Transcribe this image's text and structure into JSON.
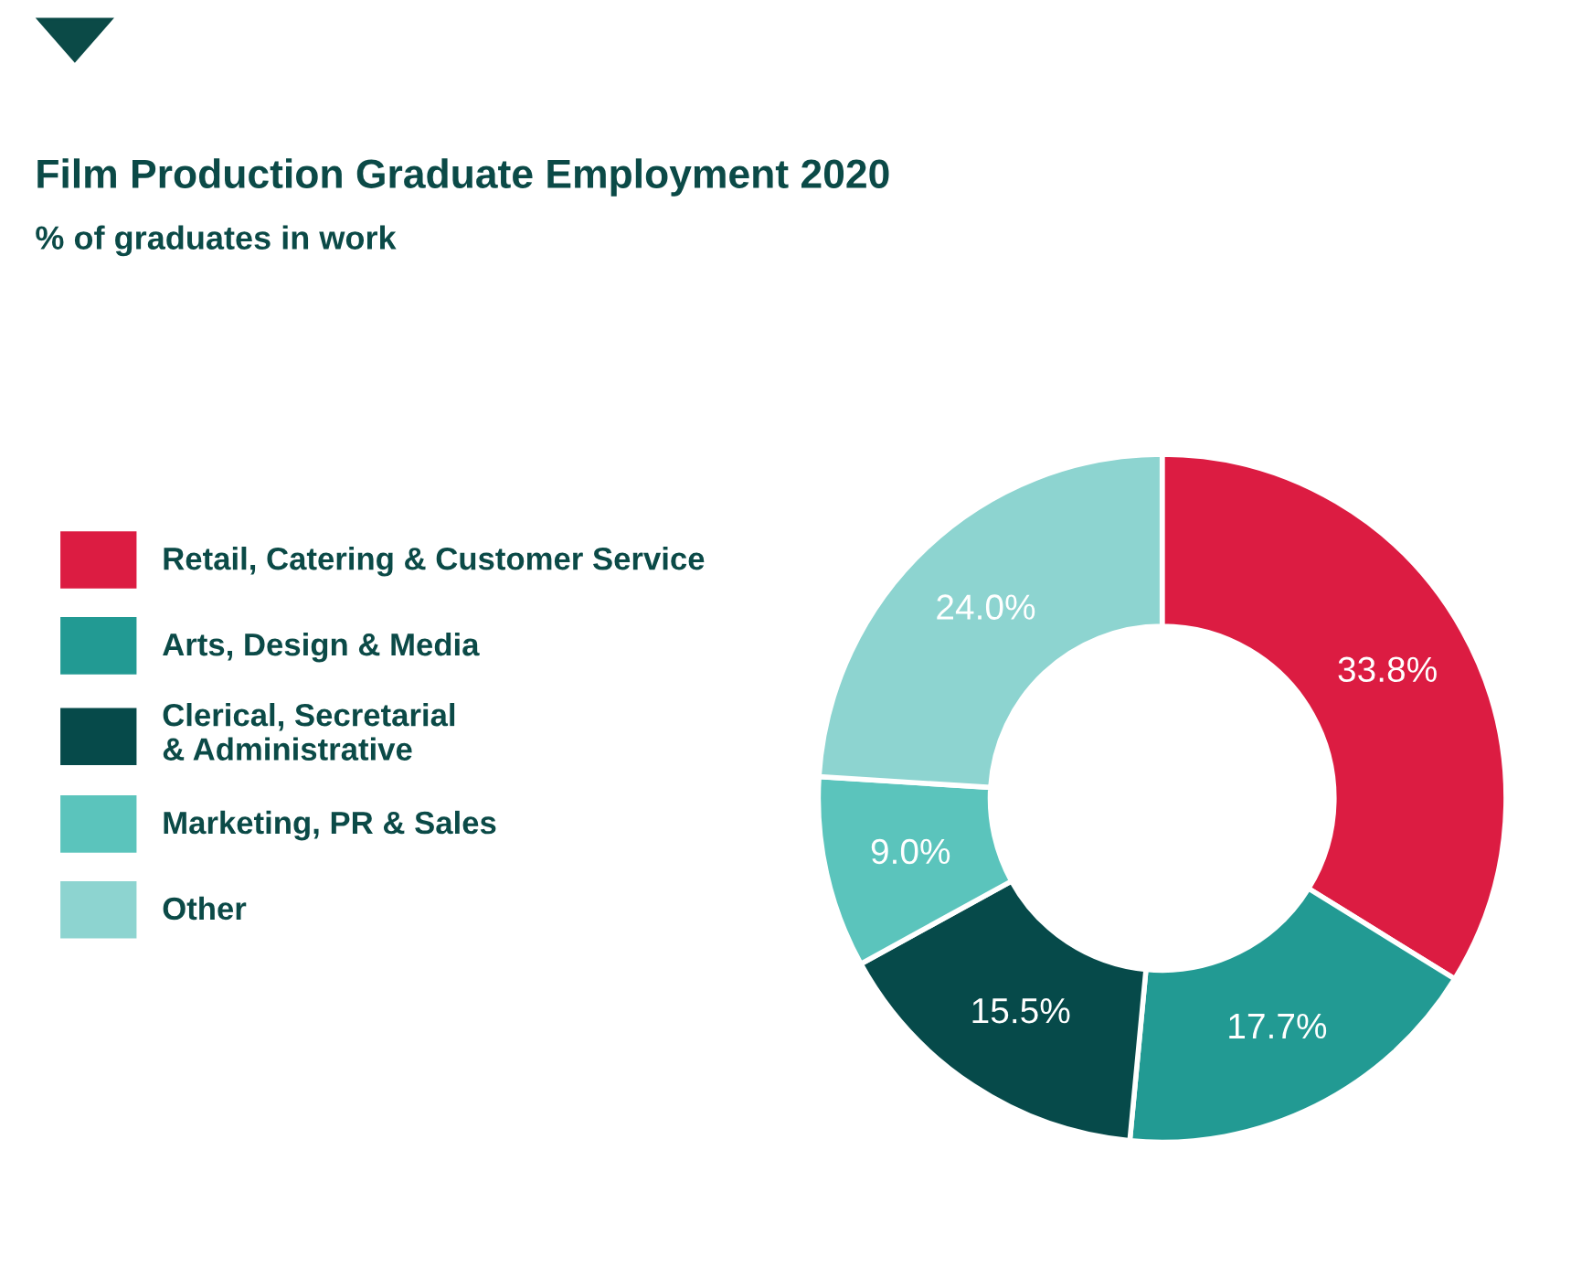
{
  "chart_data": {
    "type": "donut",
    "title": "Film Production Graduate Employment 2020",
    "subtitle": "% of graduates in work",
    "categories": [
      "Retail, Catering & Customer Service",
      "Arts, Design & Media",
      "Clerical, Secretarial\n& Administrative",
      "Marketing, PR & Sales",
      "Other"
    ],
    "values": [
      33.8,
      17.7,
      15.5,
      9.0,
      24.0
    ],
    "colors": [
      "#dc1c42",
      "#229a93",
      "#064a4a",
      "#5bc4bc",
      "#8dd4d0"
    ],
    "value_labels": [
      "33.8%",
      "17.7%",
      "15.5%",
      "9.0%",
      "24.0%"
    ],
    "legend": "left"
  }
}
